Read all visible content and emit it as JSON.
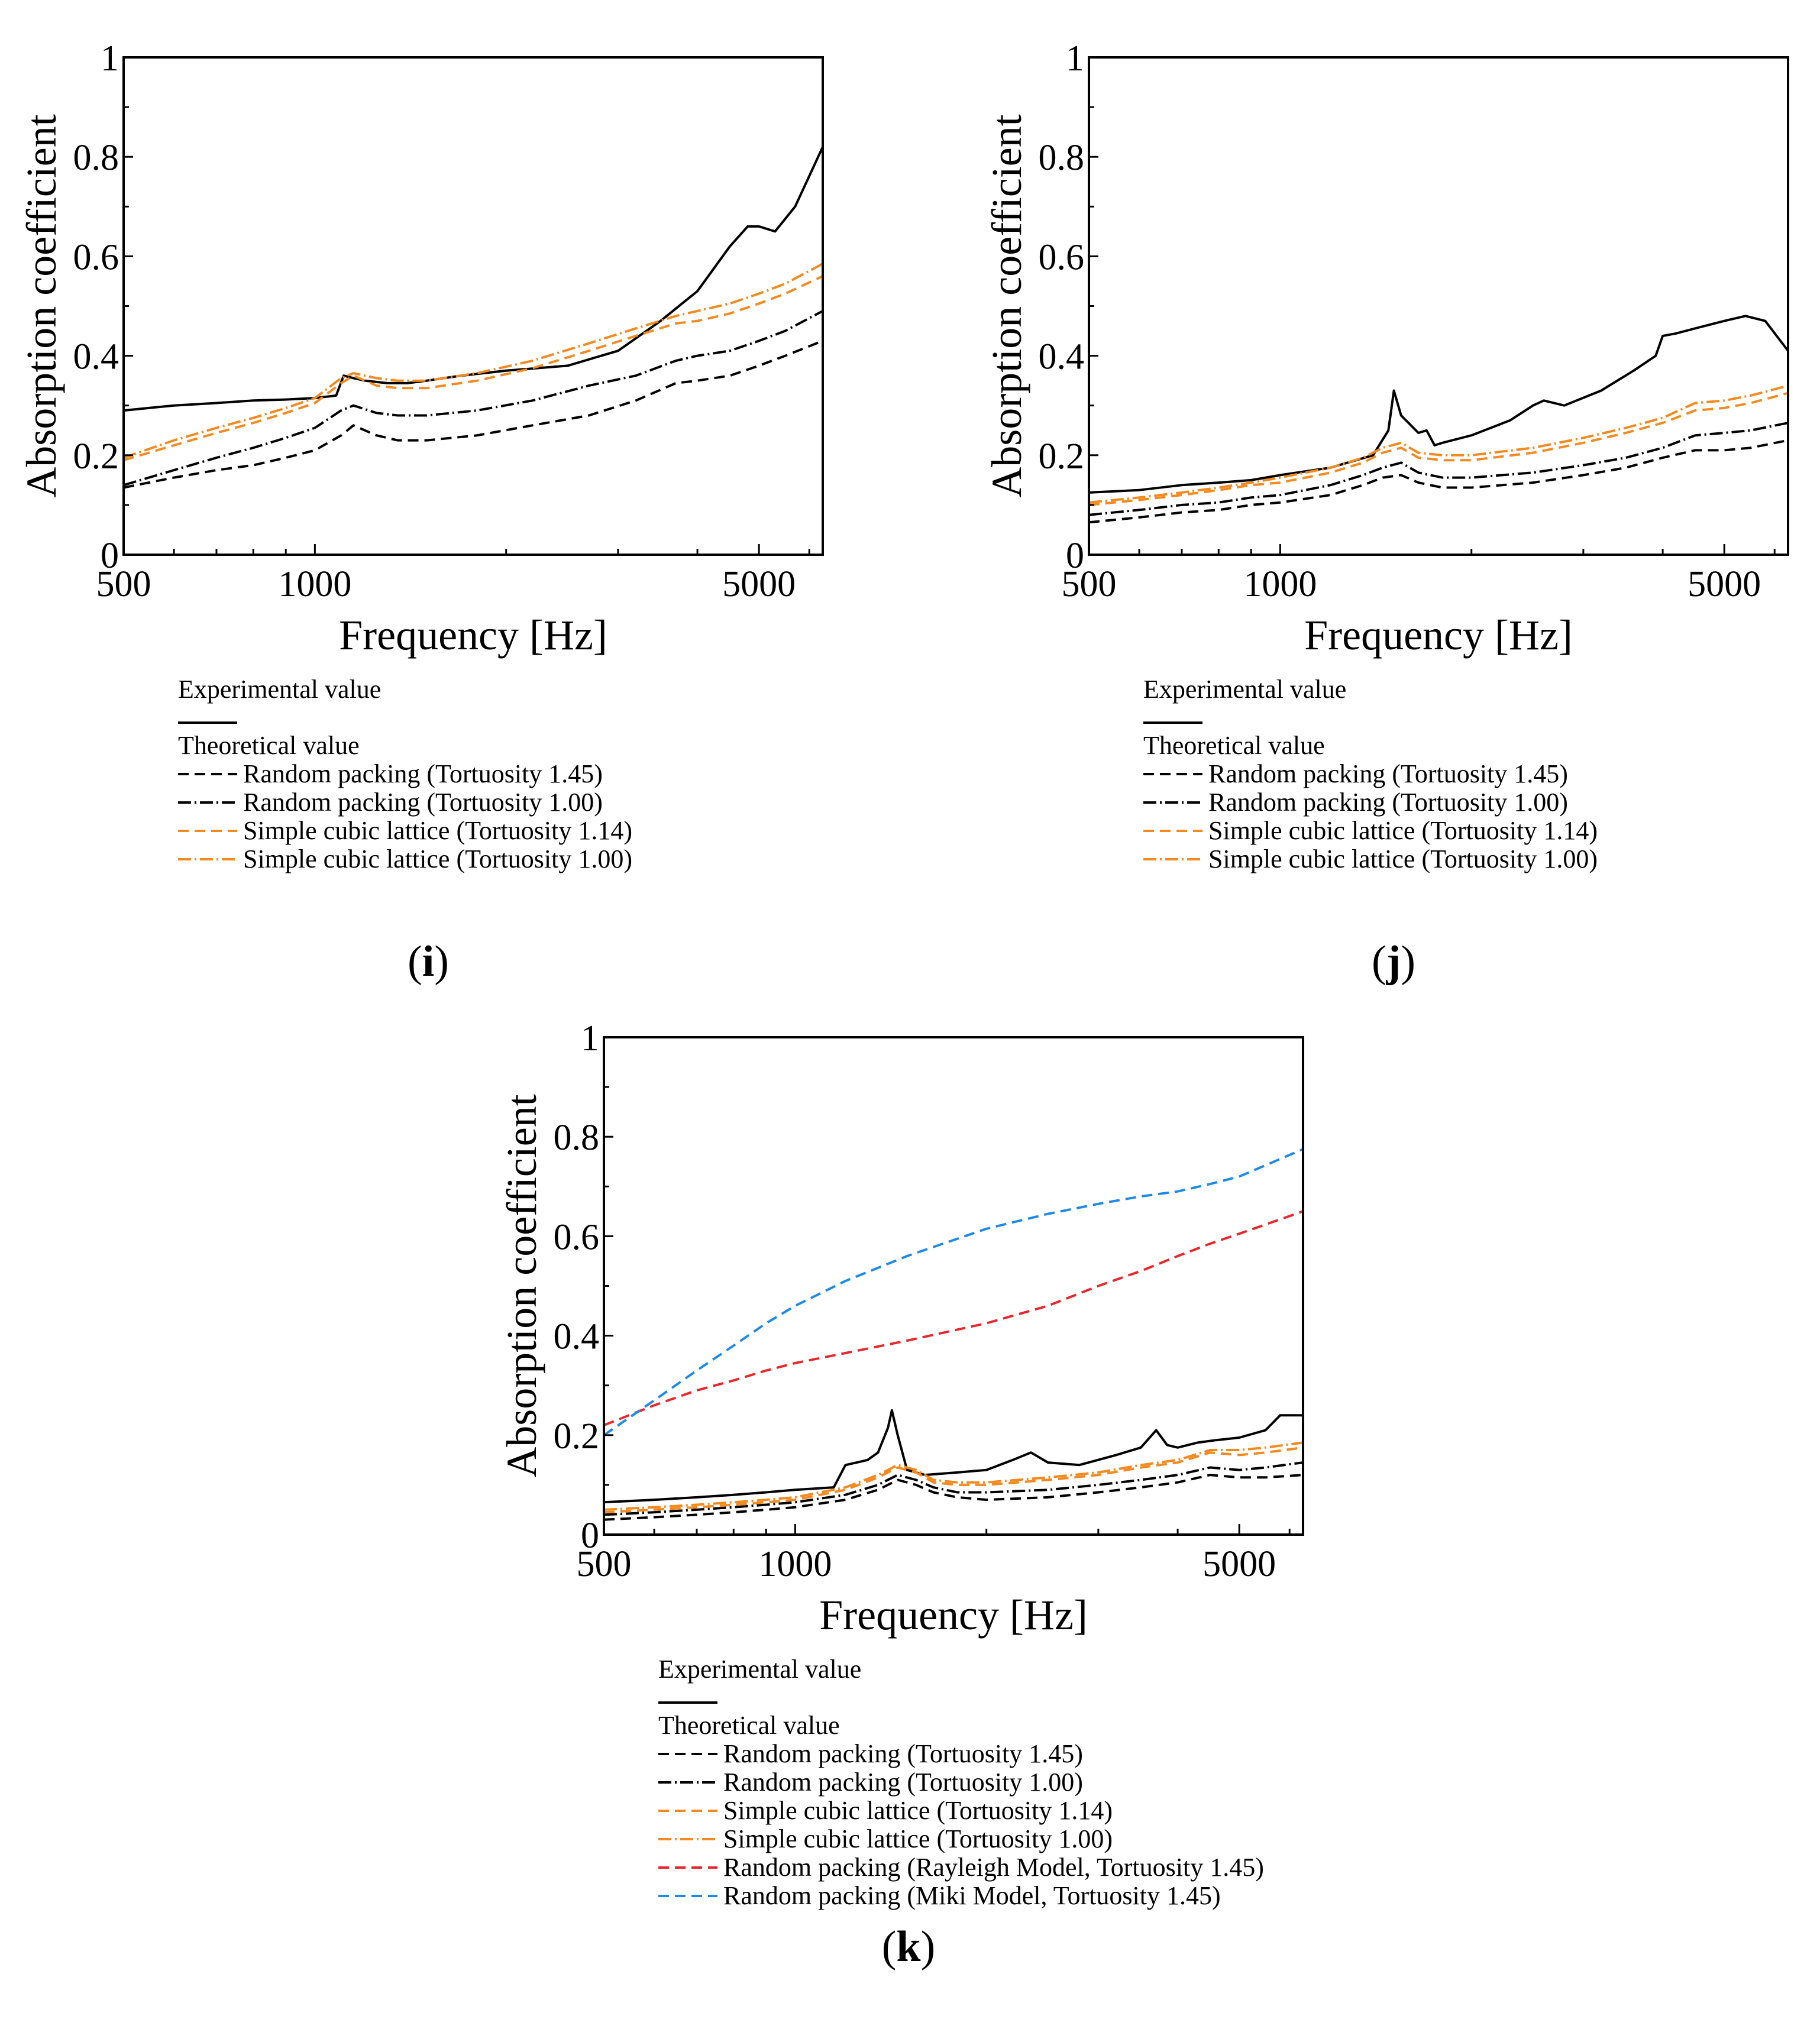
{
  "colors": {
    "black": "#000000",
    "orange": "#f28a20",
    "red": "#e8262b",
    "blue": "#1e8ae6"
  },
  "panels": [
    {
      "label_open": "(",
      "label_letter": "i",
      "label_close": ")"
    },
    {
      "label_open": "(",
      "label_letter": "j",
      "label_close": ")"
    },
    {
      "label_open": "(",
      "label_letter": "k",
      "label_close": ")"
    }
  ],
  "chart_data": [
    {
      "type": "line",
      "xlabel": "Frequency [Hz]",
      "ylabel": "Absorption coefficient",
      "xscale": "log",
      "xlim": [
        500,
        6300
      ],
      "ylim": [
        0,
        1
      ],
      "xticks": [
        500,
        1000,
        5000
      ],
      "xtick_labels": [
        "500",
        "1000",
        "5000"
      ],
      "yticks": [
        0,
        0.2,
        0.4,
        0.6,
        0.8,
        1
      ],
      "ytick_labels": [
        "0",
        "0.2",
        "0.4",
        "0.6",
        "0.8",
        "1"
      ],
      "grid": false,
      "legend": {
        "placement": "below",
        "group1": "Experimental value",
        "group2": "Theoretical value"
      },
      "series": [
        {
          "name": "Experimental value",
          "color": "#000000",
          "dash": "solid",
          "x": [
            500,
            600,
            700,
            800,
            900,
            1000,
            1080,
            1110,
            1150,
            1200,
            1300,
            1400,
            1500,
            1700,
            2000,
            2500,
            3000,
            3500,
            4000,
            4500,
            4800,
            5000,
            5300,
            5700,
            6300
          ],
          "y": [
            0.29,
            0.3,
            0.305,
            0.31,
            0.312,
            0.315,
            0.32,
            0.36,
            0.355,
            0.35,
            0.345,
            0.345,
            0.35,
            0.36,
            0.37,
            0.38,
            0.41,
            0.47,
            0.53,
            0.62,
            0.66,
            0.66,
            0.65,
            0.7,
            0.82
          ]
        },
        {
          "name": "Random packing (Tortuosity 1.45)",
          "color": "#000000",
          "dash": "dash",
          "x": [
            500,
            600,
            700,
            800,
            900,
            1000,
            1100,
            1150,
            1250,
            1350,
            1500,
            1800,
            2200,
            2700,
            3200,
            3700,
            4000,
            4500,
            5000,
            5500,
            6300
          ],
          "y": [
            0.135,
            0.155,
            0.17,
            0.18,
            0.195,
            0.21,
            0.24,
            0.26,
            0.24,
            0.23,
            0.23,
            0.24,
            0.26,
            0.28,
            0.31,
            0.345,
            0.35,
            0.36,
            0.38,
            0.4,
            0.43
          ]
        },
        {
          "name": "Random packing (Tortuosity 1.00)",
          "color": "#000000",
          "dash": "dashdot",
          "x": [
            500,
            600,
            700,
            800,
            900,
            1000,
            1100,
            1150,
            1250,
            1350,
            1500,
            1800,
            2200,
            2700,
            3200,
            3700,
            4000,
            4500,
            5000,
            5500,
            6300
          ],
          "y": [
            0.14,
            0.17,
            0.195,
            0.215,
            0.235,
            0.255,
            0.29,
            0.3,
            0.285,
            0.28,
            0.28,
            0.29,
            0.31,
            0.34,
            0.36,
            0.39,
            0.4,
            0.41,
            0.43,
            0.45,
            0.49
          ]
        },
        {
          "name": "Simple cubic lattice (Tortuosity 1.14)",
          "color": "#f28a20",
          "dash": "dash",
          "x": [
            500,
            600,
            700,
            800,
            900,
            1000,
            1100,
            1150,
            1250,
            1350,
            1500,
            1800,
            2200,
            2700,
            3200,
            3700,
            4000,
            4500,
            5000,
            5500,
            6300
          ],
          "y": [
            0.19,
            0.22,
            0.245,
            0.265,
            0.285,
            0.305,
            0.345,
            0.36,
            0.34,
            0.335,
            0.335,
            0.35,
            0.375,
            0.41,
            0.44,
            0.465,
            0.47,
            0.485,
            0.505,
            0.525,
            0.56
          ]
        },
        {
          "name": "Simple cubic lattice (Tortuosity 1.00)",
          "color": "#f28a20",
          "dash": "dashdot",
          "x": [
            500,
            600,
            700,
            800,
            900,
            1000,
            1100,
            1150,
            1250,
            1350,
            1500,
            1800,
            2200,
            2700,
            3200,
            3700,
            4000,
            4500,
            5000,
            5500,
            6300
          ],
          "y": [
            0.195,
            0.23,
            0.255,
            0.275,
            0.295,
            0.315,
            0.355,
            0.365,
            0.355,
            0.35,
            0.35,
            0.365,
            0.39,
            0.425,
            0.455,
            0.48,
            0.49,
            0.505,
            0.525,
            0.545,
            0.585
          ]
        }
      ]
    },
    {
      "type": "line",
      "xlabel": "Frequency [Hz]",
      "ylabel": "Absorption coefficient",
      "xscale": "log",
      "xlim": [
        500,
        6300
      ],
      "ylim": [
        0,
        1
      ],
      "xticks": [
        500,
        1000,
        5000
      ],
      "xtick_labels": [
        "500",
        "1000",
        "5000"
      ],
      "yticks": [
        0,
        0.2,
        0.4,
        0.6,
        0.8,
        1
      ],
      "ytick_labels": [
        "0",
        "0.2",
        "0.4",
        "0.6",
        "0.8",
        "1"
      ],
      "grid": false,
      "legend": {
        "placement": "below",
        "group1": "Experimental value",
        "group2": "Theoretical value"
      },
      "series": [
        {
          "name": "Experimental value",
          "color": "#000000",
          "dash": "solid",
          "x": [
            500,
            600,
            700,
            800,
            900,
            1000,
            1200,
            1400,
            1480,
            1510,
            1550,
            1650,
            1700,
            1750,
            1800,
            2000,
            2300,
            2500,
            2600,
            2800,
            3200,
            3600,
            3900,
            4000,
            4200,
            4500,
            5000,
            5400,
            5800,
            6300
          ],
          "y": [
            0.125,
            0.13,
            0.14,
            0.145,
            0.15,
            0.16,
            0.175,
            0.2,
            0.25,
            0.33,
            0.28,
            0.245,
            0.25,
            0.22,
            0.225,
            0.24,
            0.27,
            0.3,
            0.31,
            0.3,
            0.33,
            0.37,
            0.4,
            0.44,
            0.445,
            0.455,
            0.47,
            0.48,
            0.47,
            0.41
          ]
        },
        {
          "name": "Random packing (Tortuosity 1.45)",
          "color": "#000000",
          "dash": "dash",
          "x": [
            500,
            600,
            700,
            800,
            900,
            1000,
            1200,
            1350,
            1450,
            1550,
            1650,
            1800,
            2000,
            2500,
            3000,
            3500,
            4000,
            4500,
            5000,
            5500,
            6300
          ],
          "y": [
            0.065,
            0.075,
            0.085,
            0.09,
            0.1,
            0.105,
            0.12,
            0.14,
            0.155,
            0.16,
            0.145,
            0.135,
            0.135,
            0.145,
            0.16,
            0.175,
            0.195,
            0.21,
            0.21,
            0.215,
            0.23
          ]
        },
        {
          "name": "Random packing (Tortuosity 1.00)",
          "color": "#000000",
          "dash": "dashdot",
          "x": [
            500,
            600,
            700,
            800,
            900,
            1000,
            1200,
            1350,
            1450,
            1550,
            1650,
            1800,
            2000,
            2500,
            3000,
            3500,
            4000,
            4500,
            5000,
            5500,
            6300
          ],
          "y": [
            0.08,
            0.09,
            0.1,
            0.105,
            0.115,
            0.12,
            0.14,
            0.16,
            0.175,
            0.185,
            0.165,
            0.155,
            0.155,
            0.165,
            0.18,
            0.195,
            0.215,
            0.24,
            0.245,
            0.25,
            0.265
          ]
        },
        {
          "name": "Simple cubic lattice (Tortuosity 1.14)",
          "color": "#f28a20",
          "dash": "dash",
          "x": [
            500,
            600,
            700,
            800,
            900,
            1000,
            1200,
            1350,
            1450,
            1550,
            1650,
            1800,
            2000,
            2500,
            3000,
            3500,
            4000,
            4500,
            5000,
            5500,
            6300
          ],
          "y": [
            0.1,
            0.11,
            0.12,
            0.13,
            0.14,
            0.145,
            0.165,
            0.185,
            0.205,
            0.215,
            0.195,
            0.19,
            0.19,
            0.205,
            0.225,
            0.245,
            0.265,
            0.29,
            0.295,
            0.305,
            0.325
          ]
        },
        {
          "name": "Simple cubic lattice (Tortuosity 1.00)",
          "color": "#f28a20",
          "dash": "dashdot",
          "x": [
            500,
            600,
            700,
            800,
            900,
            1000,
            1200,
            1350,
            1450,
            1550,
            1650,
            1800,
            2000,
            2500,
            3000,
            3500,
            4000,
            4500,
            5000,
            5500,
            6300
          ],
          "y": [
            0.105,
            0.115,
            0.125,
            0.135,
            0.145,
            0.155,
            0.175,
            0.195,
            0.215,
            0.225,
            0.205,
            0.2,
            0.2,
            0.215,
            0.235,
            0.255,
            0.275,
            0.305,
            0.31,
            0.32,
            0.34
          ]
        }
      ]
    },
    {
      "type": "line",
      "xlabel": "Frequency [Hz]",
      "ylabel": "Absorption coefficient",
      "xscale": "log",
      "xlim": [
        500,
        6300
      ],
      "ylim": [
        0,
        1
      ],
      "xticks": [
        500,
        1000,
        5000
      ],
      "xtick_labels": [
        "500",
        "1000",
        "5000"
      ],
      "yticks": [
        0,
        0.2,
        0.4,
        0.6,
        0.8,
        1
      ],
      "ytick_labels": [
        "0",
        "0.2",
        "0.4",
        "0.6",
        "0.8",
        "1"
      ],
      "grid": false,
      "legend": {
        "placement": "below",
        "group1": "Experimental value",
        "group2": "Theoretical value"
      },
      "series": [
        {
          "name": "Experimental value",
          "color": "#000000",
          "dash": "solid",
          "x": [
            500,
            600,
            700,
            800,
            900,
            1000,
            1150,
            1200,
            1250,
            1300,
            1350,
            1400,
            1420,
            1450,
            1500,
            1600,
            1800,
            2000,
            2200,
            2350,
            2500,
            2800,
            3200,
            3500,
            3700,
            3850,
            4000,
            4300,
            4600,
            5000,
            5500,
            5800,
            6300
          ],
          "y": [
            0.065,
            0.07,
            0.075,
            0.08,
            0.085,
            0.09,
            0.095,
            0.14,
            0.145,
            0.15,
            0.165,
            0.215,
            0.25,
            0.2,
            0.13,
            0.12,
            0.125,
            0.13,
            0.15,
            0.165,
            0.145,
            0.14,
            0.16,
            0.175,
            0.21,
            0.18,
            0.175,
            0.185,
            0.19,
            0.195,
            0.21,
            0.24,
            0.24
          ]
        },
        {
          "name": "Random packing (Tortuosity 1.45)",
          "color": "#000000",
          "dash": "dash",
          "x": [
            500,
            600,
            700,
            800,
            900,
            1000,
            1200,
            1350,
            1450,
            1550,
            1650,
            1800,
            2000,
            2500,
            3000,
            3500,
            4000,
            4500,
            5000,
            5500,
            6300
          ],
          "y": [
            0.03,
            0.035,
            0.04,
            0.045,
            0.05,
            0.055,
            0.07,
            0.09,
            0.11,
            0.1,
            0.085,
            0.075,
            0.07,
            0.075,
            0.085,
            0.095,
            0.105,
            0.12,
            0.115,
            0.115,
            0.12
          ]
        },
        {
          "name": "Random packing (Tortuosity 1.00)",
          "color": "#000000",
          "dash": "dashdot",
          "x": [
            500,
            600,
            700,
            800,
            900,
            1000,
            1200,
            1350,
            1450,
            1550,
            1650,
            1800,
            2000,
            2500,
            3000,
            3500,
            4000,
            4500,
            5000,
            5500,
            6300
          ],
          "y": [
            0.04,
            0.045,
            0.05,
            0.055,
            0.06,
            0.065,
            0.08,
            0.1,
            0.12,
            0.11,
            0.095,
            0.085,
            0.085,
            0.09,
            0.1,
            0.11,
            0.12,
            0.135,
            0.13,
            0.135,
            0.145
          ]
        },
        {
          "name": "Simple cubic lattice (Tortuosity 1.14)",
          "color": "#f28a20",
          "dash": "dash",
          "x": [
            500,
            600,
            700,
            800,
            900,
            1000,
            1200,
            1350,
            1450,
            1550,
            1650,
            1800,
            2000,
            2500,
            3000,
            3500,
            4000,
            4500,
            5000,
            5500,
            6300
          ],
          "y": [
            0.045,
            0.05,
            0.055,
            0.06,
            0.065,
            0.07,
            0.09,
            0.115,
            0.135,
            0.125,
            0.105,
            0.1,
            0.1,
            0.11,
            0.12,
            0.135,
            0.145,
            0.165,
            0.16,
            0.165,
            0.175
          ]
        },
        {
          "name": "Simple cubic lattice (Tortuosity 1.00)",
          "color": "#f28a20",
          "dash": "dashdot",
          "x": [
            500,
            600,
            700,
            800,
            900,
            1000,
            1200,
            1350,
            1450,
            1550,
            1650,
            1800,
            2000,
            2500,
            3000,
            3500,
            4000,
            4500,
            5000,
            5500,
            6300
          ],
          "y": [
            0.05,
            0.055,
            0.06,
            0.065,
            0.07,
            0.075,
            0.095,
            0.12,
            0.14,
            0.13,
            0.11,
            0.105,
            0.105,
            0.115,
            0.125,
            0.14,
            0.15,
            0.17,
            0.17,
            0.175,
            0.185
          ]
        },
        {
          "name": "Random packing (Rayleigh Model, Tortuosity 1.45)",
          "color": "#e8262b",
          "dash": "dash",
          "x": [
            500,
            600,
            700,
            800,
            900,
            1000,
            1200,
            1500,
            2000,
            2500,
            3000,
            3500,
            4000,
            4500,
            5000,
            6300
          ],
          "y": [
            0.22,
            0.26,
            0.29,
            0.31,
            0.33,
            0.345,
            0.365,
            0.39,
            0.425,
            0.46,
            0.5,
            0.53,
            0.56,
            0.585,
            0.605,
            0.65
          ]
        },
        {
          "name": "Random packing (Miki Model, Tortuosity 1.45)",
          "color": "#1e8ae6",
          "dash": "dash",
          "x": [
            500,
            600,
            700,
            800,
            900,
            1000,
            1200,
            1500,
            2000,
            2500,
            3000,
            3500,
            4000,
            4500,
            5000,
            6300
          ],
          "y": [
            0.2,
            0.27,
            0.33,
            0.38,
            0.425,
            0.46,
            0.51,
            0.56,
            0.615,
            0.645,
            0.665,
            0.68,
            0.69,
            0.705,
            0.72,
            0.775
          ]
        }
      ]
    }
  ]
}
